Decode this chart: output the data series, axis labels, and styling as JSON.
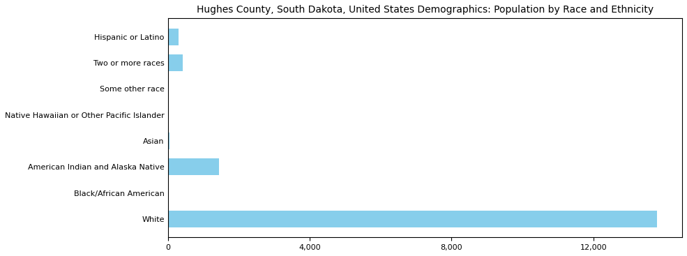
{
  "title": "Hughes County, South Dakota, United States Demographics: Population by Race and Ethnicity",
  "categories": [
    "White",
    "Black/African American",
    "American Indian and Alaska Native",
    "Asian",
    "Native Hawaiian or Other Pacific Islander",
    "Some other race",
    "Two or more races",
    "Hispanic or Latino"
  ],
  "values": [
    13800,
    30,
    1450,
    50,
    15,
    25,
    420,
    310
  ],
  "bar_color": "#87CEEB",
  "xlim": [
    0,
    14500
  ],
  "xticks": [
    0,
    4000,
    8000,
    12000
  ],
  "xlabel": "",
  "ylabel": "",
  "figsize": [
    9.85,
    3.67
  ],
  "dpi": 100,
  "title_fontsize": 10
}
